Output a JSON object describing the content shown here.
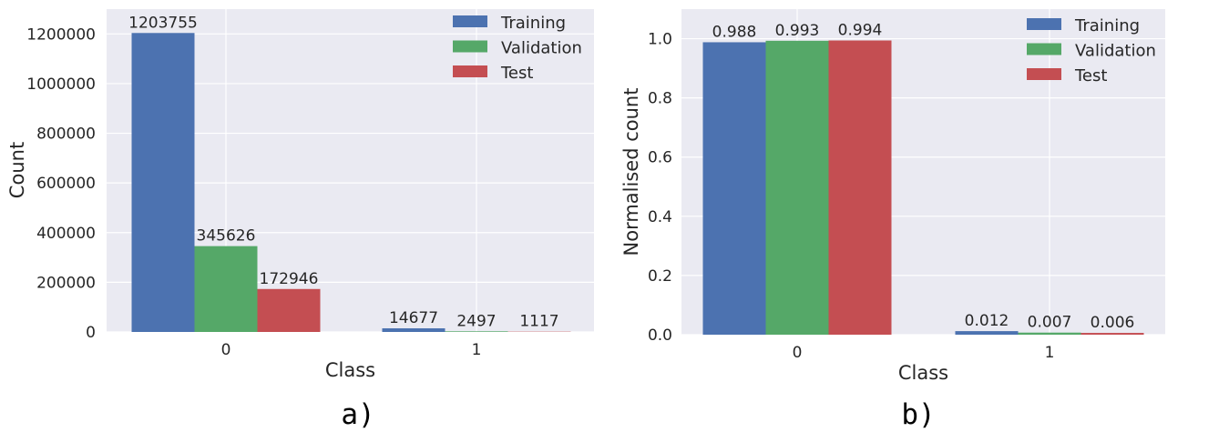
{
  "colors": {
    "Training": "#4c72b0",
    "Validation": "#55a868",
    "Test": "#c44e52",
    "plot_background": "#eaeaf2",
    "grid": "#ffffff"
  },
  "chart_data": [
    {
      "type": "bar",
      "panel_label": "a)",
      "categories": [
        "0",
        "1"
      ],
      "series": [
        {
          "name": "Training",
          "values": [
            1203755,
            14677
          ]
        },
        {
          "name": "Validation",
          "values": [
            345626,
            2497
          ]
        },
        {
          "name": "Test",
          "values": [
            172946,
            1117
          ]
        }
      ],
      "data_labels": [
        [
          "1203755",
          "14677"
        ],
        [
          "345626",
          "2497"
        ],
        [
          "172946",
          "1117"
        ]
      ],
      "xlabel": "Class",
      "ylabel": "Count",
      "ylim": [
        0,
        1300000
      ],
      "yticks": [
        0,
        200000,
        400000,
        600000,
        800000,
        1000000,
        1200000
      ],
      "ytick_labels": [
        "0",
        "200000",
        "400000",
        "600000",
        "800000",
        "1000000",
        "1200000"
      ],
      "grid": true,
      "legend": "top-right"
    },
    {
      "type": "bar",
      "panel_label": "b)",
      "categories": [
        "0",
        "1"
      ],
      "series": [
        {
          "name": "Training",
          "values": [
            0.988,
            0.012
          ]
        },
        {
          "name": "Validation",
          "values": [
            0.993,
            0.007
          ]
        },
        {
          "name": "Test",
          "values": [
            0.994,
            0.006
          ]
        }
      ],
      "data_labels": [
        [
          "0.988",
          "0.012"
        ],
        [
          "0.993",
          "0.007"
        ],
        [
          "0.994",
          "0.006"
        ]
      ],
      "xlabel": "Class",
      "ylabel": "Normalised count",
      "ylim": [
        0,
        1.1
      ],
      "yticks": [
        0,
        0.2,
        0.4,
        0.6,
        0.8,
        1.0
      ],
      "ytick_labels": [
        "0.0",
        "0.2",
        "0.4",
        "0.6",
        "0.8",
        "1.0"
      ],
      "grid": true,
      "legend": "top-right"
    }
  ]
}
